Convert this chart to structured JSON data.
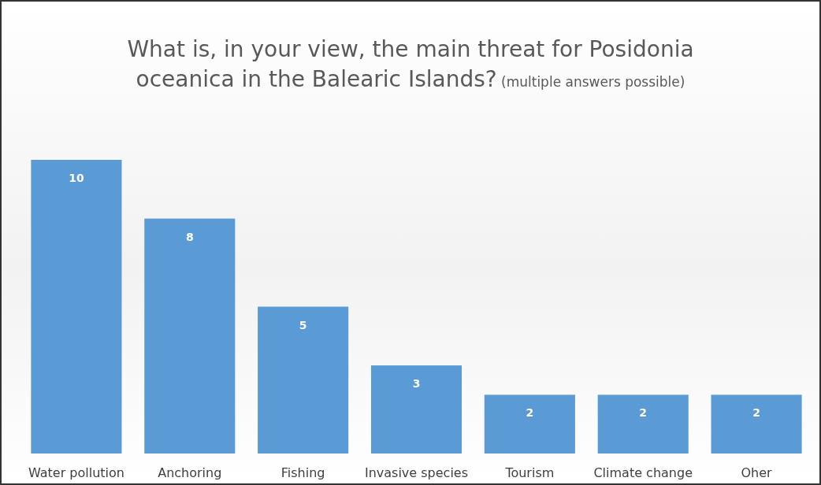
{
  "chart_data": {
    "type": "bar",
    "title": "What is, in your view, the main threat for Posidonia oceanica in the Balearic Islands?",
    "subtitle": "(multiple answers possible)",
    "categories": [
      "Water pollution",
      "Anchoring",
      "Fishing",
      "Invasive species",
      "Tourism",
      "Climate change",
      "Oher"
    ],
    "values": [
      10,
      8,
      5,
      3,
      2,
      2,
      2
    ],
    "color": "#5b9bd5",
    "data_labels": true
  }
}
